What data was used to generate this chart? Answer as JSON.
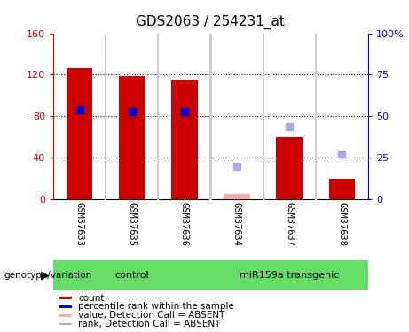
{
  "title": "GDS2063 / 254231_at",
  "samples": [
    "GSM37633",
    "GSM37635",
    "GSM37636",
    "GSM37634",
    "GSM37637",
    "GSM37638"
  ],
  "count_values": [
    126,
    119,
    115,
    null,
    60,
    20
  ],
  "count_absent": [
    null,
    null,
    null,
    5,
    null,
    null
  ],
  "rank_values_pct": [
    54,
    53,
    53,
    null,
    null,
    null
  ],
  "rank_absent_pct": [
    null,
    null,
    null,
    20,
    44,
    27
  ],
  "ylim_left": [
    0,
    160
  ],
  "ylim_right": [
    0,
    100
  ],
  "yticks_left": [
    0,
    40,
    80,
    120,
    160
  ],
  "yticks_right": [
    0,
    25,
    50,
    75,
    100
  ],
  "yticklabels_right": [
    "0",
    "25",
    "50",
    "75",
    "100%"
  ],
  "bar_width": 0.5,
  "marker_size": 6,
  "count_color": "#cc0000",
  "rank_color": "#0000cc",
  "count_absent_color": "#ffaaaa",
  "rank_absent_color": "#aaaaee",
  "bg_color": "#cccccc",
  "genotype_label": "genotype/variation",
  "group_labels": [
    "control",
    "miR159a transgenic"
  ],
  "group_color": "#66dd66",
  "legend_items": [
    {
      "label": "count",
      "color": "#cc0000"
    },
    {
      "label": "percentile rank within the sample",
      "color": "#0000cc"
    },
    {
      "label": "value, Detection Call = ABSENT",
      "color": "#ffaaaa"
    },
    {
      "label": "rank, Detection Call = ABSENT",
      "color": "#aaaaee"
    }
  ]
}
